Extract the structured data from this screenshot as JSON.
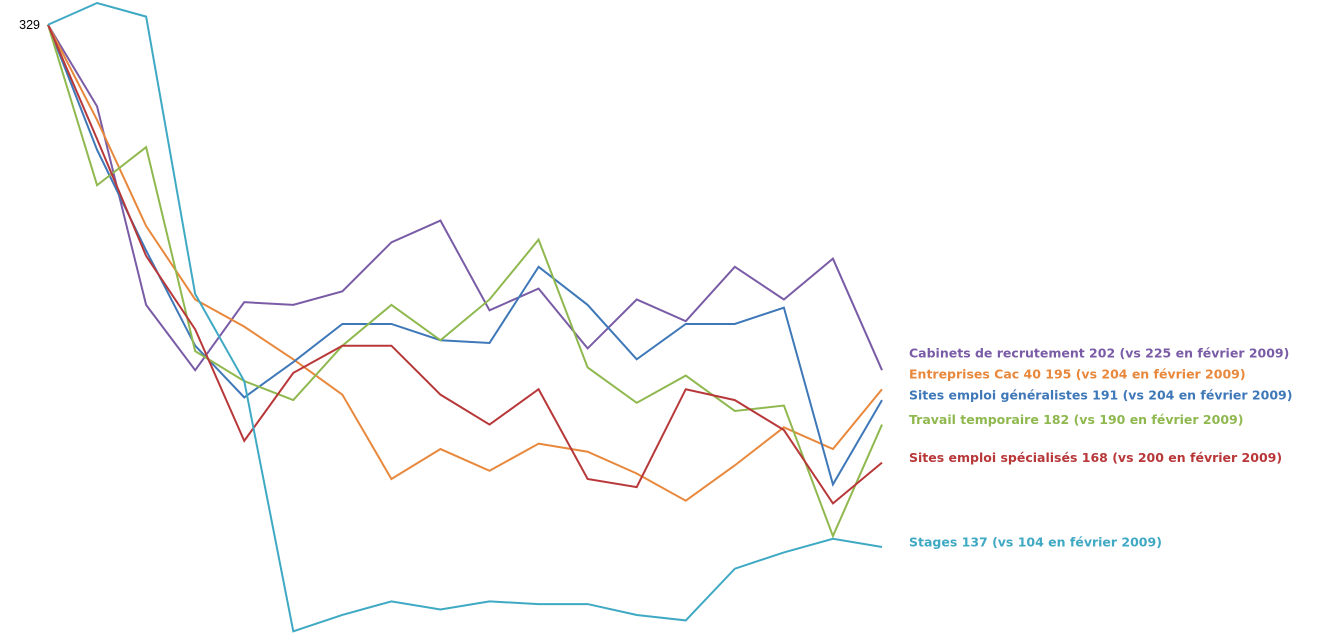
{
  "chart_data": {
    "type": "line",
    "categories": [
      null,
      null,
      null,
      null,
      null,
      null,
      null,
      null,
      null,
      null,
      null,
      null,
      null,
      null,
      null,
      null,
      null,
      null
    ],
    "ylim": [
      105,
      337
    ],
    "grid": false,
    "series": [
      {
        "name": "Cabinets de recrutement  202 (vs 225 en février 2009)",
        "color": "#7a5ca6",
        "values": [
          329,
          299,
          226,
          202,
          227,
          226,
          231,
          249,
          257,
          224,
          232,
          210,
          228,
          220,
          240,
          228,
          243,
          202
        ]
      },
      {
        "name": "Entreprises Cac 40 195 (vs 204 en février 2009)",
        "color": "#e8883c",
        "values": [
          329,
          294,
          255,
          228,
          218,
          206,
          193,
          162,
          173,
          165,
          175,
          172,
          164,
          154,
          167,
          181,
          173,
          195
        ]
      },
      {
        "name": "Sites emploi généralistes 191 (vs 204 en février 2009)",
        "color": "#3f78b8",
        "values": [
          329,
          283,
          246,
          211,
          192,
          205,
          219,
          219,
          213,
          212,
          240,
          226,
          206,
          219,
          219,
          225,
          160,
          191
        ]
      },
      {
        "name": "Travail temporaire 182 (vs 190 en février 2009)",
        "color": "#8fb84f",
        "values": [
          329,
          270,
          284,
          209,
          198,
          191,
          211,
          226,
          213,
          228,
          250,
          203,
          190,
          200,
          187,
          189,
          141,
          182
        ]
      },
      {
        "name": "Sites emploi spécialisés  168 (vs 200 en février 2009)",
        "color": "#b8383a",
        "values": [
          329,
          287,
          244,
          217,
          176,
          201,
          211,
          211,
          193,
          182,
          195,
          162,
          159,
          195,
          191,
          180,
          153,
          168
        ]
      },
      {
        "name": "Stages 137 (vs 104 en février 2009)",
        "color": "#3fa9c4",
        "values": [
          329,
          337,
          332,
          230,
          198,
          106,
          112,
          117,
          114,
          117,
          116,
          116,
          112,
          110,
          129,
          135,
          140,
          137
        ]
      }
    ]
  }
}
